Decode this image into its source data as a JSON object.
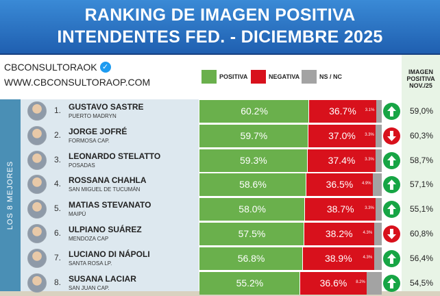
{
  "header": {
    "title_line1": "RANKING DE IMAGEN POSITIVA",
    "title_line2": "INTENDENTES FED. - DICIEMBRE 2025"
  },
  "brand": {
    "handle": "CBCONSULTORAOK",
    "verified_icon": "verified-check-icon",
    "website": "WWW.CBCONSULTORAOP.COM"
  },
  "legend": [
    {
      "label": "POSITIVA",
      "color": "#6ab04c"
    },
    {
      "label": "NEGATIVA",
      "color": "#d8111c"
    },
    {
      "label": "NS / NC",
      "color": "#a3a3a3"
    }
  ],
  "column_header": {
    "line1": "IMAGEN",
    "line2": "POSITIVA",
    "line3": "NOV./25"
  },
  "sidebar_label": "LOS 8 MEJORES",
  "colors": {
    "positive": "#6ab04c",
    "negative": "#d8111c",
    "nsnc": "#a3a3a3",
    "arrow_up": "#17a545",
    "arrow_down": "#d8111c",
    "header_blue": "#1f5fb0"
  },
  "chart_data": {
    "type": "bar",
    "stacked": true,
    "orientation": "horizontal",
    "title": "RANKING DE IMAGEN POSITIVA INTENDENTES FED. - DICIEMBRE 2025",
    "categories": [
      "GUSTAVO SASTRE",
      "JORGE JOFRÉ",
      "LEONARDO STELATTO",
      "ROSSANA CHAHLA",
      "MATIAS STEVANATO",
      "ULPIANO SUÁREZ",
      "LUCIANO DI NÁPOLI",
      "SUSANA LACIAR"
    ],
    "series": [
      {
        "name": "POSITIVA",
        "values": [
          60.2,
          59.7,
          59.3,
          58.6,
          58.0,
          57.5,
          56.8,
          55.2
        ]
      },
      {
        "name": "NEGATIVA",
        "values": [
          36.7,
          37.0,
          37.4,
          36.5,
          38.7,
          38.2,
          38.9,
          36.6
        ]
      },
      {
        "name": "NS / NC",
        "values": [
          3.1,
          3.3,
          3.3,
          4.9,
          3.3,
          4.3,
          4.3,
          8.2
        ]
      }
    ],
    "rows": [
      {
        "rank": "1.",
        "name": "GUSTAVO SASTRE",
        "city": "PUERTO MADRYN",
        "pos": 60.2,
        "neg": 36.7,
        "ns": 3.1,
        "pos_label": "60.2%",
        "neg_label": "36.7%",
        "ns_label": "3.1%",
        "trend": "up",
        "prev_label": "59,0%"
      },
      {
        "rank": "2.",
        "name": "JORGE JOFRÉ",
        "city": "FORMOSA CAP.",
        "pos": 59.7,
        "neg": 37.0,
        "ns": 3.3,
        "pos_label": "59.7%",
        "neg_label": "37.0%",
        "ns_label": "3.3%",
        "trend": "down",
        "prev_label": "60,3%"
      },
      {
        "rank": "3.",
        "name": "LEONARDO STELATTO",
        "city": "POSADAS",
        "pos": 59.3,
        "neg": 37.4,
        "ns": 3.3,
        "pos_label": "59.3%",
        "neg_label": "37.4%",
        "ns_label": "3.3%",
        "trend": "up",
        "prev_label": "58,7%"
      },
      {
        "rank": "4.",
        "name": "ROSSANA CHAHLA",
        "city": "SAN MIGUEL DE TUCUMÁN",
        "pos": 58.6,
        "neg": 36.5,
        "ns": 4.9,
        "pos_label": "58.6%",
        "neg_label": "36.5%",
        "ns_label": "4.9%",
        "trend": "up",
        "prev_label": "57,1%"
      },
      {
        "rank": "5.",
        "name": "MATIAS STEVANATO",
        "city": "MAIPÚ",
        "pos": 58.0,
        "neg": 38.7,
        "ns": 3.3,
        "pos_label": "58.0%",
        "neg_label": "38.7%",
        "ns_label": "3.3%",
        "trend": "up",
        "prev_label": "55,1%"
      },
      {
        "rank": "6.",
        "name": "ULPIANO SUÁREZ",
        "city": "MENDOZA CAP",
        "pos": 57.5,
        "neg": 38.2,
        "ns": 4.3,
        "pos_label": "57.5%",
        "neg_label": "38.2%",
        "ns_label": "4.3%",
        "trend": "down",
        "prev_label": "60,8%"
      },
      {
        "rank": "7.",
        "name": "LUCIANO DI NÁPOLI",
        "city": "SANTA ROSA LP.",
        "pos": 56.8,
        "neg": 38.9,
        "ns": 4.3,
        "pos_label": "56.8%",
        "neg_label": "38.9%",
        "ns_label": "4.3%",
        "trend": "up",
        "prev_label": "56,4%"
      },
      {
        "rank": "8.",
        "name": "SUSANA LACIAR",
        "city": "SAN JUAN CAP.",
        "pos": 55.2,
        "neg": 36.6,
        "ns": 8.2,
        "pos_label": "55.2%",
        "neg_label": "36.6%",
        "ns_label": "8.2%",
        "trend": "up",
        "prev_label": "54,5%"
      }
    ]
  }
}
